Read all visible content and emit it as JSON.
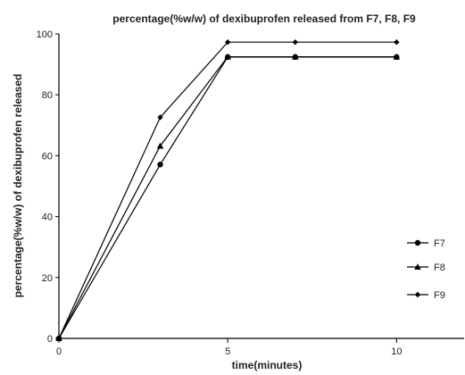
{
  "chart_data": {
    "type": "line",
    "title": "percentage(%w/w) of dexibuprofen released from F7, F8, F9",
    "xlabel": "time(minutes)",
    "ylabel": "percentage(%w/w) of dexibuprofen released",
    "xlim": [
      0,
      12
    ],
    "ylim": [
      0,
      100
    ],
    "xticks": [
      0,
      5,
      10
    ],
    "xtick_labels": [
      "0",
      "5",
      "10"
    ],
    "yticks": [
      0,
      20,
      40,
      60,
      80,
      100
    ],
    "ytick_labels": [
      "0",
      "20",
      "40",
      "60",
      "80",
      "100"
    ],
    "grid": false,
    "legend_position": "right",
    "x": [
      0,
      3,
      5,
      7,
      10
    ],
    "series": [
      {
        "name": "F7",
        "marker": "circle",
        "values": [
          0,
          57.1,
          92.4,
          92.4,
          92.4
        ]
      },
      {
        "name": "F8",
        "marker": "triangle",
        "values": [
          0,
          63.2,
          92.5,
          92.5,
          92.5
        ]
      },
      {
        "name": "F9",
        "marker": "diamond",
        "values": [
          0,
          72.6,
          97.3,
          97.3,
          97.3
        ]
      }
    ]
  }
}
